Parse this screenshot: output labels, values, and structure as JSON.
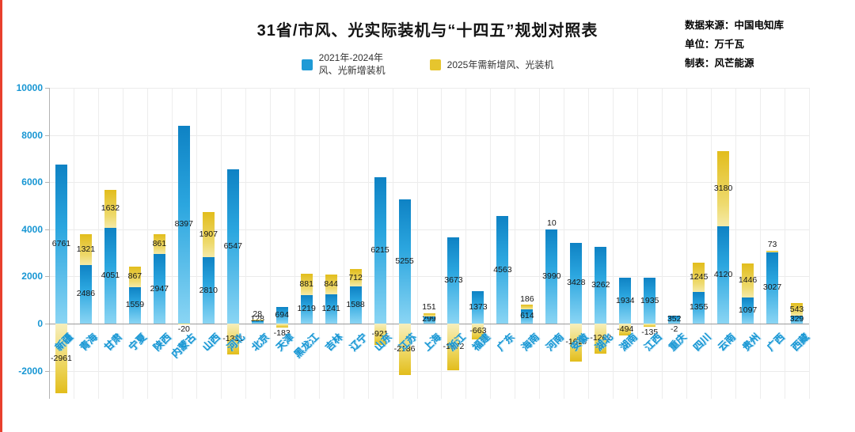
{
  "window": {
    "left_accent_color": "#e8402d"
  },
  "header": {
    "title": "31省/市风、光实际装机与“十四五”规划对照表",
    "meta": [
      "数据来源：中国电知库",
      "单位：万千瓦",
      "制表：风芒能源"
    ]
  },
  "legend": {
    "items": [
      {
        "label": "2021年-2024年风、光新增装机",
        "color": "#1e9ad6"
      },
      {
        "label": "2025年需新增风、光装机",
        "color": "#e6c52e"
      }
    ]
  },
  "chart_data": {
    "type": "bar",
    "stacked": true,
    "title": "31省/市风、光实际装机与“十四五”规划对照表",
    "unit": "万千瓦",
    "xlabel": "",
    "ylabel": "万千瓦",
    "grid": true,
    "legend_position": "top",
    "ylim": [
      -3200,
      10000
    ],
    "yticks": [
      -2000,
      0,
      2000,
      4000,
      6000,
      8000,
      10000
    ],
    "categories": [
      "新疆",
      "青海",
      "甘肃",
      "宁夏",
      "陕西",
      "内蒙古",
      "山西",
      "河北",
      "北京",
      "天津",
      "黑龙江",
      "吉林",
      "辽宁",
      "山东",
      "江苏",
      "上海",
      "浙江",
      "福建",
      "广东",
      "海南",
      "河南",
      "安徽",
      "湖北",
      "湖南",
      "江西",
      "重庆",
      "四川",
      "云南",
      "贵州",
      "广西",
      "西藏"
    ],
    "series": [
      {
        "name": "2021年-2024年风、光新增装机",
        "color": "#1e9ad6",
        "values": [
          6761,
          2486,
          4051,
          1559,
          2947,
          8397,
          2810,
          6547,
          128,
          694,
          1219,
          1241,
          1588,
          6215,
          5255,
          299,
          3673,
          1373,
          4563,
          614,
          3990,
          3428,
          3262,
          1934,
          1935,
          352,
          1355,
          4120,
          1097,
          3027,
          329
        ]
      },
      {
        "name": "2025年需新增风、光装机",
        "color": "#e6c52e",
        "values": [
          -2961,
          1321,
          1632,
          867,
          861,
          -20,
          1907,
          -1311,
          28,
          -183,
          881,
          844,
          712,
          -921,
          -2186,
          151,
          -1972,
          -663,
          0,
          186,
          10,
          -1610,
          -1262,
          -494,
          -135,
          -2,
          1245,
          3180,
          1446,
          73,
          543
        ]
      }
    ]
  }
}
